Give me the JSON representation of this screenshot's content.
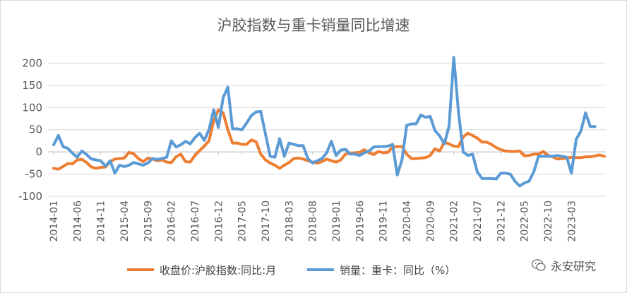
{
  "chart_data": {
    "type": "line",
    "title": "沪胶指数与重卡销量同比增速",
    "xlabel": "",
    "ylabel": "",
    "ylim": [
      -100,
      250
    ],
    "yticks": [
      -100,
      -50,
      0,
      50,
      100,
      150,
      200
    ],
    "grid": "horizontal",
    "legend_position": "bottom",
    "x_tick_labels": [
      "2014-01",
      "2014-06",
      "2014-11",
      "2015-04",
      "2015-09",
      "2016-02",
      "2016-07",
      "2016-12",
      "2017-05",
      "2017-10",
      "2018-03",
      "2018-08",
      "2019-01",
      "2019-06",
      "2019-11",
      "2020-04",
      "2020-09",
      "2021-02",
      "2021-07",
      "2021-12",
      "2022-05",
      "2022-10",
      "2023-03"
    ],
    "x_start": "2014-01",
    "series": [
      {
        "name": "收盘价:沪胶指数:同比:月",
        "color": "#ED7D31",
        "values": [
          -37,
          -39,
          -33,
          -26,
          -27,
          -18,
          -17,
          -24,
          -34,
          -37,
          -35,
          -34,
          -22,
          -16,
          -15,
          -14,
          -1,
          -4,
          -15,
          -22,
          -14,
          -16,
          -20,
          -18,
          -23,
          -24,
          -11,
          -5,
          -22,
          -23,
          -8,
          3,
          13,
          25,
          70,
          95,
          88,
          50,
          20,
          20,
          17,
          17,
          27,
          23,
          -5,
          -18,
          -25,
          -30,
          -37,
          -30,
          -24,
          -15,
          -14,
          -16,
          -20,
          -23,
          -25,
          -22,
          -16,
          -20,
          -23,
          -18,
          -5,
          -3,
          -2,
          -1,
          5,
          -2,
          -6,
          1,
          -2,
          -1,
          11,
          12,
          12,
          -5,
          -15,
          -15,
          -14,
          -13,
          -8,
          7,
          2,
          22,
          18,
          13,
          12,
          34,
          42,
          37,
          31,
          22,
          22,
          17,
          10,
          5,
          2,
          1,
          1,
          2,
          -9,
          -8,
          -5,
          -5,
          1,
          -8,
          -11,
          -16,
          -15,
          -14,
          -12,
          -13,
          -13,
          -11,
          -11,
          -9,
          -7,
          -10
        ]
      },
      {
        "name": "销量：重卡：同比（%）",
        "color": "#5B9BD5",
        "values": [
          16,
          37,
          12,
          8,
          -3,
          -12,
          2,
          -6,
          -16,
          -18,
          -20,
          -32,
          -20,
          -48,
          -30,
          -33,
          -30,
          -24,
          -27,
          -30,
          -25,
          -15,
          -17,
          -15,
          -12,
          25,
          11,
          16,
          24,
          18,
          32,
          42,
          26,
          50,
          95,
          55,
          122,
          146,
          52,
          52,
          50,
          65,
          82,
          90,
          91,
          40,
          -10,
          -12,
          30,
          -10,
          20,
          17,
          14,
          14,
          -15,
          -25,
          -20,
          -15,
          -2,
          24,
          -8,
          4,
          6,
          -5,
          -5,
          -8,
          -2,
          2,
          11,
          12,
          12,
          13,
          17,
          -52,
          -18,
          60,
          63,
          63,
          83,
          78,
          80,
          48,
          36,
          18,
          58,
          213,
          90,
          0,
          -8,
          -5,
          -45,
          -60,
          -60,
          -60,
          -61,
          -48,
          -48,
          -50,
          -66,
          -77,
          -70,
          -66,
          -45,
          -10,
          -10,
          -10,
          -10,
          -8,
          -10,
          -12,
          -48,
          28,
          47,
          88,
          57,
          57
        ]
      }
    ]
  },
  "watermark": {
    "text": "永安研究",
    "icon": "wechat-icon"
  }
}
